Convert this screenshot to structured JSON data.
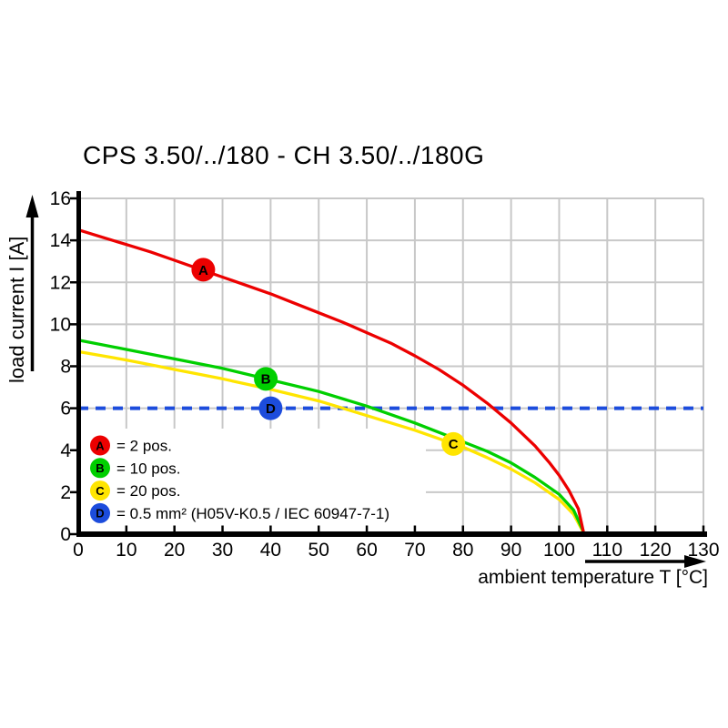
{
  "title": "CPS 3.50/../180 - CH 3.50/../180G",
  "chart_data": {
    "type": "line",
    "title": "CPS 3.50/../180 - CH 3.50/../180G",
    "xlabel": "ambient temperature T [°C]",
    "ylabel": "load current I [A]",
    "xlim": [
      0,
      130
    ],
    "ylim": [
      0,
      16
    ],
    "x_tick_step": 10,
    "y_tick_step": 2,
    "grid": true,
    "grid_color": "#c8c8c8",
    "legend_position": "bottom-left",
    "series": [
      {
        "id": "A",
        "label": "2 pos.",
        "color": "#ec0000",
        "points": [
          [
            0,
            14.5
          ],
          [
            5,
            14.15
          ],
          [
            10,
            13.8
          ],
          [
            15,
            13.45
          ],
          [
            20,
            13.05
          ],
          [
            25,
            12.65
          ],
          [
            30,
            12.25
          ],
          [
            35,
            11.85
          ],
          [
            40,
            11.45
          ],
          [
            45,
            11.0
          ],
          [
            50,
            10.55
          ],
          [
            55,
            10.1
          ],
          [
            60,
            9.6
          ],
          [
            65,
            9.1
          ],
          [
            70,
            8.5
          ],
          [
            75,
            7.85
          ],
          [
            80,
            7.1
          ],
          [
            85,
            6.25
          ],
          [
            90,
            5.3
          ],
          [
            95,
            4.2
          ],
          [
            98,
            3.4
          ],
          [
            100,
            2.8
          ],
          [
            102,
            2.1
          ],
          [
            104,
            1.2
          ],
          [
            105,
            0.15
          ]
        ]
      },
      {
        "id": "B",
        "label": "10 pos.",
        "color": "#00cf00",
        "points": [
          [
            0,
            9.25
          ],
          [
            10,
            8.8
          ],
          [
            20,
            8.35
          ],
          [
            30,
            7.9
          ],
          [
            40,
            7.35
          ],
          [
            50,
            6.8
          ],
          [
            60,
            6.1
          ],
          [
            70,
            5.3
          ],
          [
            80,
            4.4
          ],
          [
            85,
            3.95
          ],
          [
            90,
            3.4
          ],
          [
            95,
            2.7
          ],
          [
            100,
            1.9
          ],
          [
            103,
            1.15
          ],
          [
            105,
            0.15
          ]
        ]
      },
      {
        "id": "C",
        "label": "20 pos.",
        "color": "#ffe500",
        "points": [
          [
            0,
            8.7
          ],
          [
            10,
            8.3
          ],
          [
            20,
            7.85
          ],
          [
            30,
            7.4
          ],
          [
            40,
            6.9
          ],
          [
            50,
            6.35
          ],
          [
            55,
            6.0
          ],
          [
            60,
            5.65
          ],
          [
            70,
            4.95
          ],
          [
            80,
            4.15
          ],
          [
            85,
            3.65
          ],
          [
            90,
            3.1
          ],
          [
            95,
            2.45
          ],
          [
            100,
            1.65
          ],
          [
            103,
            0.95
          ],
          [
            105,
            0.1
          ]
        ]
      }
    ],
    "reference_line": {
      "id": "D",
      "label": "0.5 mm² (H05V-K0.5 / IEC 60947-7-1)",
      "y": 6,
      "color": "#1c4cdc",
      "style": "dashed"
    },
    "curve_markers": [
      {
        "id": "A",
        "x": 26,
        "y": 12.6
      },
      {
        "id": "B",
        "x": 39,
        "y": 7.4
      },
      {
        "id": "C",
        "x": 78,
        "y": 4.3
      },
      {
        "id": "D",
        "x": 40,
        "y": 6.0
      }
    ],
    "legend": {
      "items": [
        {
          "id": "A",
          "color": "#ec0000",
          "label": "= 2 pos."
        },
        {
          "id": "B",
          "color": "#00cf00",
          "label": "= 10 pos."
        },
        {
          "id": "C",
          "color": "#ffe500",
          "label": "= 20 pos."
        },
        {
          "id": "D",
          "color": "#1c4cdc",
          "label": "= 0.5 mm² (H05V-K0.5 / IEC 60947-7-1)"
        }
      ]
    }
  }
}
